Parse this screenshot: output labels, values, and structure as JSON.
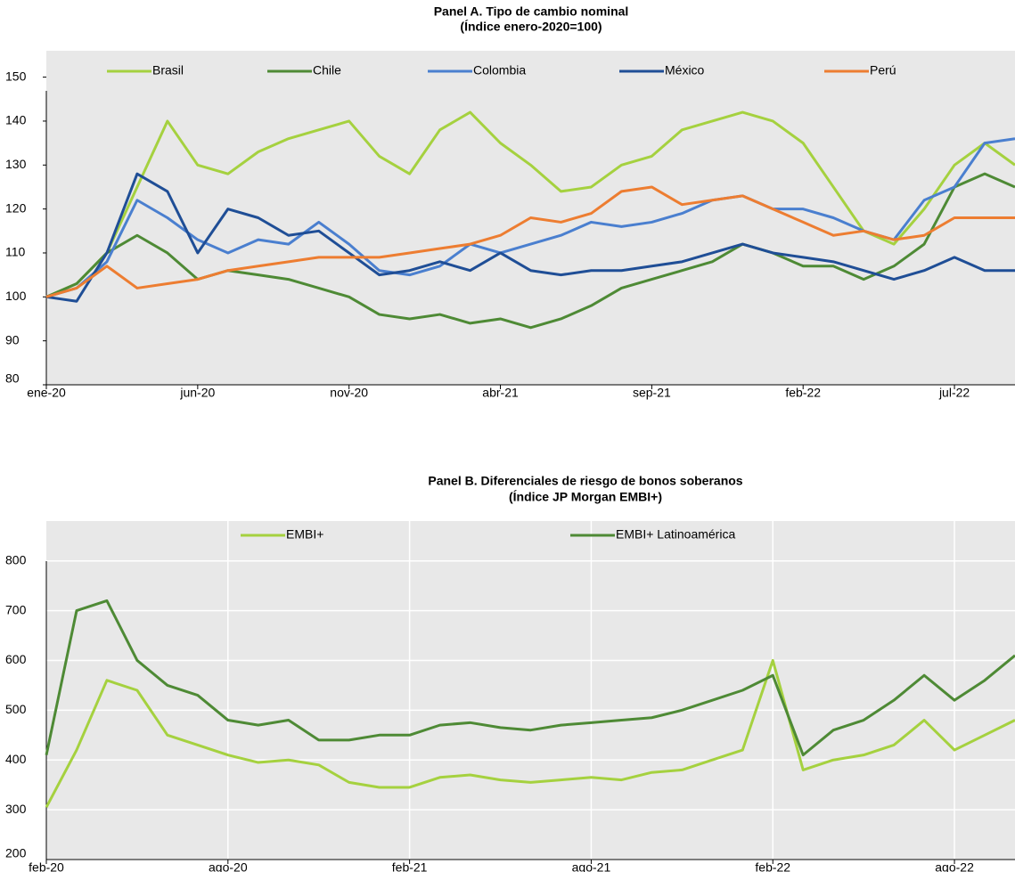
{
  "chart_data": [
    {
      "type": "line",
      "title": "Panel A. Tipo de cambio nominal",
      "subtitle": "(Índice enero-2020=100)",
      "x": [
        "2020-01",
        "2020-02",
        "2020-03",
        "2020-04",
        "2020-05",
        "2020-06",
        "2020-07",
        "2020-08",
        "2020-09",
        "2020-10",
        "2020-11",
        "2020-12",
        "2021-01",
        "2021-02",
        "2021-03",
        "2021-04",
        "2021-05",
        "2021-06",
        "2021-07",
        "2021-08",
        "2021-09",
        "2021-10",
        "2021-11",
        "2021-12",
        "2022-01",
        "2022-02",
        "2022-03",
        "2022-04",
        "2022-05",
        "2022-06",
        "2022-07",
        "2022-08",
        "2022-09"
      ],
      "series": [
        {
          "name": "Brasil",
          "color": "#a5d13f",
          "values": [
            100,
            103,
            110,
            125,
            140,
            130,
            128,
            133,
            136,
            138,
            140,
            132,
            128,
            138,
            142,
            135,
            130,
            124,
            125,
            130,
            132,
            138,
            140,
            142,
            140,
            135,
            125,
            115,
            112,
            120,
            130,
            135,
            130
          ]
        },
        {
          "name": "Chile",
          "color": "#4e8a35",
          "values": [
            100,
            103,
            110,
            114,
            110,
            104,
            106,
            105,
            104,
            102,
            100,
            96,
            95,
            96,
            94,
            95,
            93,
            95,
            98,
            102,
            104,
            106,
            108,
            112,
            110,
            107,
            107,
            104,
            107,
            112,
            125,
            128,
            125
          ]
        },
        {
          "name": "Colombia",
          "color": "#4a7fcf",
          "values": [
            100,
            102,
            108,
            122,
            118,
            113,
            110,
            113,
            112,
            117,
            112,
            106,
            105,
            107,
            112,
            110,
            112,
            114,
            117,
            116,
            117,
            119,
            122,
            123,
            120,
            120,
            118,
            115,
            113,
            122,
            125,
            135,
            136
          ]
        },
        {
          "name": "México",
          "color": "#1f4e96",
          "values": [
            100,
            99,
            110,
            128,
            124,
            110,
            120,
            118,
            114,
            115,
            110,
            105,
            106,
            108,
            106,
            110,
            106,
            105,
            106,
            106,
            107,
            108,
            110,
            112,
            110,
            109,
            108,
            106,
            104,
            106,
            109,
            106,
            106
          ]
        },
        {
          "name": "Perú",
          "color": "#ed7d31",
          "values": [
            100,
            102,
            107,
            102,
            103,
            104,
            106,
            107,
            108,
            109,
            109,
            109,
            110,
            111,
            112,
            114,
            118,
            117,
            119,
            124,
            125,
            121,
            122,
            123,
            120,
            117,
            114,
            115,
            113,
            114,
            118,
            118,
            118
          ]
        }
      ],
      "xlim": [
        "2020-01",
        "2022-09"
      ],
      "xticks": [
        {
          "value": "2020-01",
          "label": "ene-20"
        },
        {
          "value": "2020-06",
          "label": "jun-20"
        },
        {
          "value": "2020-11",
          "label": "nov-20"
        },
        {
          "value": "2021-04",
          "label": "abr-21"
        },
        {
          "value": "2021-09",
          "label": "sep-21"
        },
        {
          "value": "2022-02",
          "label": "feb-22"
        },
        {
          "value": "2022-07",
          "label": "jul-22"
        }
      ],
      "ylim": [
        80,
        156
      ],
      "yticks": [
        80,
        90,
        100,
        110,
        120,
        130,
        140,
        150
      ],
      "grid": false
    },
    {
      "type": "line",
      "title": "Panel B. Diferenciales de riesgo de bonos soberanos",
      "subtitle": "(Índice JP Morgan EMBI+)",
      "x": [
        "2020-02",
        "2020-03",
        "2020-04",
        "2020-05",
        "2020-06",
        "2020-07",
        "2020-08",
        "2020-09",
        "2020-10",
        "2020-11",
        "2020-12",
        "2021-01",
        "2021-02",
        "2021-03",
        "2021-04",
        "2021-05",
        "2021-06",
        "2021-07",
        "2021-08",
        "2021-09",
        "2021-10",
        "2021-11",
        "2021-12",
        "2022-01",
        "2022-02",
        "2022-03",
        "2022-04",
        "2022-05",
        "2022-06",
        "2022-07",
        "2022-08",
        "2022-09",
        "2022-10"
      ],
      "series": [
        {
          "name": "EMBI+",
          "color": "#a5d13f",
          "values": [
            305,
            420,
            560,
            540,
            450,
            430,
            410,
            395,
            400,
            390,
            355,
            345,
            345,
            365,
            370,
            360,
            355,
            360,
            365,
            360,
            375,
            380,
            400,
            420,
            600,
            380,
            400,
            410,
            430,
            480,
            420,
            450,
            480
          ]
        },
        {
          "name": "EMBI+ Latinoamérica",
          "color": "#4e8a35",
          "values": [
            410,
            700,
            720,
            600,
            550,
            530,
            480,
            470,
            480,
            440,
            440,
            450,
            450,
            470,
            475,
            465,
            460,
            470,
            475,
            480,
            485,
            500,
            520,
            540,
            570,
            410,
            460,
            480,
            520,
            570,
            520,
            560,
            610
          ]
        }
      ],
      "xlim": [
        "2020-02",
        "2022-10"
      ],
      "xticks": [
        {
          "value": "2020-02",
          "label": "feb-20"
        },
        {
          "value": "2020-08",
          "label": "ago-20"
        },
        {
          "value": "2021-02",
          "label": "feb-21"
        },
        {
          "value": "2021-08",
          "label": "ago-21"
        },
        {
          "value": "2022-02",
          "label": "feb-22"
        },
        {
          "value": "2022-08",
          "label": "ago-22"
        }
      ],
      "ylim": [
        200,
        880
      ],
      "yticks": [
        200,
        300,
        400,
        500,
        600,
        700,
        800
      ],
      "grid": true
    }
  ]
}
